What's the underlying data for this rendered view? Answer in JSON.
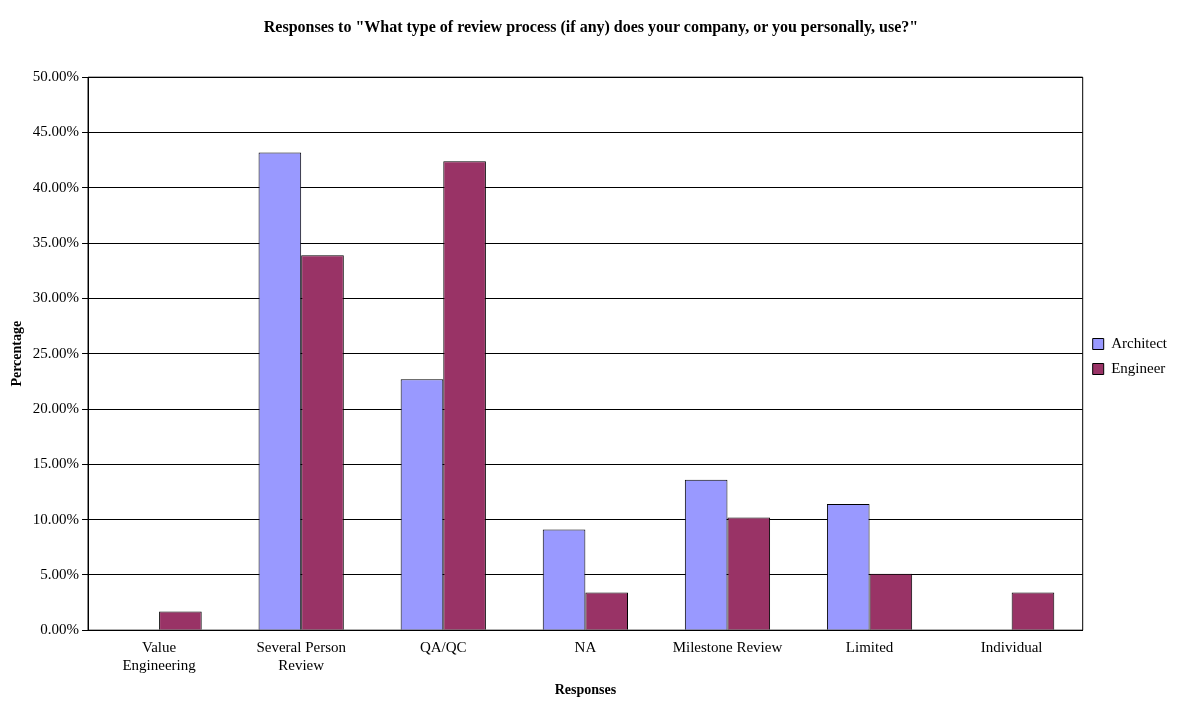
{
  "chart_data": {
    "type": "bar",
    "title": "Responses to \"What type of review process (if any) does your company, or you personally, use?\"",
    "xlabel": "Responses",
    "ylabel": "Percentage",
    "categories": [
      "Value Engineering",
      "Several Person Review",
      "QA/QC",
      "NA",
      "Milestone Review",
      "Limited",
      "Individual"
    ],
    "series": [
      {
        "name": "Architect",
        "color": "#9999ff",
        "values": [
          0,
          43.2,
          22.7,
          9.1,
          13.6,
          11.4,
          0
        ]
      },
      {
        "name": "Engineer",
        "color": "#993366",
        "values": [
          1.7,
          33.9,
          42.4,
          3.4,
          10.2,
          5.1,
          3.4
        ]
      }
    ],
    "ylim": [
      0,
      50
    ],
    "yticks": [
      {
        "value": 0,
        "label": "0.00%"
      },
      {
        "value": 5,
        "label": "5.00%"
      },
      {
        "value": 10,
        "label": "10.00%"
      },
      {
        "value": 15,
        "label": "15.00%"
      },
      {
        "value": 20,
        "label": "20.00%"
      },
      {
        "value": 25,
        "label": "25.00%"
      },
      {
        "value": 30,
        "label": "30.00%"
      },
      {
        "value": 35,
        "label": "35.00%"
      },
      {
        "value": 40,
        "label": "40.00%"
      },
      {
        "value": 45,
        "label": "45.00%"
      },
      {
        "value": 50,
        "label": "50.00%"
      }
    ],
    "grid": "y",
    "legend": "right"
  }
}
